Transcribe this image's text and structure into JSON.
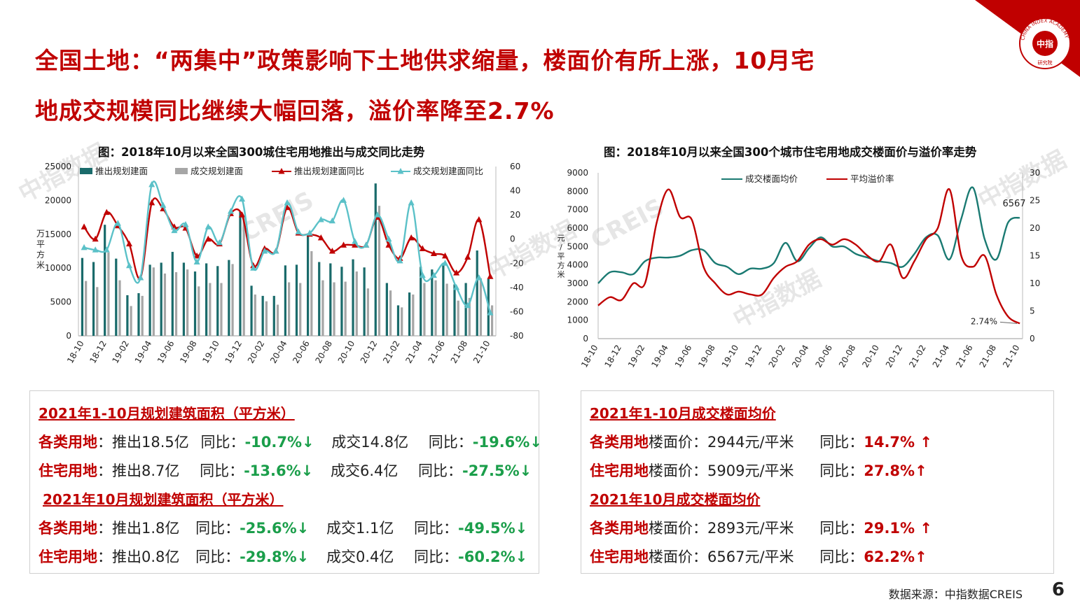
{
  "title": {
    "line1": "全国土地：“两集中”政策影响下土地供求缩量，楼面价有所上涨，10月宅",
    "line2": "地成交规模同比继续大幅回落，溢价率降至2.7%"
  },
  "logo": {
    "text_top": "CHINA INDEX ACADEMY",
    "text_center": "中指",
    "text_bottom": "研究院",
    "color": "#c00000"
  },
  "watermark": {
    "text1": "中指数据",
    "text2": "CREIS"
  },
  "left_chart": {
    "title": "图：2018年10月以来全国300城住宅用地推出与成交同比走势"
  },
  "right_chart": {
    "title": "图：2018年10月以来全国300个城市住宅用地成交楼面价与溢价率走势"
  },
  "chart_data": [
    {
      "type": "bar",
      "title": "图：2018年10月以来全国300城住宅用地推出与成交同比走势",
      "ylabel": "万平方米",
      "ylim": [
        0,
        25000
      ],
      "y2lim": [
        -80,
        60
      ],
      "yticks": [
        "25000",
        "20000",
        "15000",
        "10000",
        "5000",
        "0"
      ],
      "y2ticks": [
        "60",
        "40",
        "20",
        "0",
        "-20",
        "-40",
        "-60",
        "-80"
      ],
      "x_tick_labels": [
        "18-10",
        "18-12",
        "19-02",
        "19-04",
        "19-06",
        "19-08",
        "19-10",
        "19-12",
        "20-02",
        "20-04",
        "20-06",
        "20-08",
        "20-10",
        "20-12",
        "21-02",
        "21-04",
        "21-06",
        "21-08",
        "21-10"
      ],
      "categories": [
        "18-10",
        "18-11",
        "18-12",
        "19-01",
        "19-02",
        "19-03",
        "19-04",
        "19-05",
        "19-06",
        "19-07",
        "19-08",
        "19-09",
        "19-10",
        "19-11",
        "19-12",
        "20-01",
        "20-02",
        "20-03",
        "20-04",
        "20-05",
        "20-06",
        "20-07",
        "20-08",
        "20-09",
        "20-10",
        "20-11",
        "20-12",
        "21-01",
        "21-02",
        "21-03",
        "21-04",
        "21-05",
        "21-06",
        "21-07",
        "21-08",
        "21-09",
        "21-10"
      ],
      "series": [
        {
          "name": "推出规划建面",
          "kind": "bar",
          "axis": "left",
          "color": "#1a6b6b",
          "values": [
            11500,
            10900,
            16400,
            11400,
            6000,
            6300,
            10500,
            10800,
            12400,
            10800,
            9500,
            10700,
            10300,
            11200,
            18300,
            7400,
            5900,
            5900,
            10400,
            10500,
            15000,
            10900,
            10700,
            10200,
            11300,
            10100,
            22500,
            7800,
            4500,
            6400,
            10200,
            9800,
            10500,
            7600,
            7800,
            12600,
            8400
          ]
        },
        {
          "name": "成交规划建面",
          "kind": "bar",
          "axis": "left",
          "color": "#a6a6a6",
          "values": [
            8100,
            7200,
            12300,
            8200,
            4400,
            5900,
            10100,
            9200,
            9400,
            9800,
            7300,
            7800,
            7800,
            10600,
            17600,
            6100,
            5100,
            4600,
            7900,
            7800,
            12500,
            8200,
            7900,
            8000,
            9500,
            7000,
            19200,
            6700,
            4200,
            6100,
            7800,
            8200,
            7700,
            5200,
            5600,
            8500,
            4500
          ]
        },
        {
          "name": "推出规划建面同比",
          "kind": "line",
          "axis": "right",
          "color": "#c00000",
          "values": [
            10,
            0,
            22,
            11,
            -4,
            -32,
            30,
            25,
            10,
            9,
            -14,
            0,
            -4,
            21,
            20,
            -22,
            -8,
            -10,
            26,
            5,
            4,
            1,
            -10,
            -5,
            -5,
            -5,
            18,
            -5,
            -16,
            1,
            -8,
            -12,
            -14,
            -28,
            -15,
            16,
            -31
          ]
        },
        {
          "name": "成交规划建面同比",
          "kind": "line",
          "axis": "right",
          "color": "#5bc1c8",
          "values": [
            -7,
            -9,
            -9,
            13,
            -22,
            -32,
            45,
            28,
            7,
            12,
            -19,
            10,
            -3,
            23,
            33,
            -24,
            -10,
            -10,
            30,
            6,
            5,
            16,
            15,
            32,
            -2,
            -5,
            20,
            0,
            -18,
            30,
            -30,
            -30,
            -20,
            -40,
            -55,
            -32,
            -61
          ]
        }
      ],
      "legend": "top"
    },
    {
      "type": "line",
      "title": "图：2018年10月以来全国300个城市住宅用地成交楼面价与溢价率走势",
      "ylabel": "元/平方米",
      "ylim": [
        0,
        9000
      ],
      "y2lim": [
        0,
        30
      ],
      "yticks": [
        "9000",
        "8000",
        "7000",
        "6000",
        "5000",
        "4000",
        "3000",
        "2000",
        "1000",
        "0"
      ],
      "y2ticks": [
        "30",
        "25",
        "20",
        "15",
        "10",
        "5",
        "0"
      ],
      "x_tick_labels": [
        "18-10",
        "18-12",
        "19-02",
        "19-04",
        "19-06",
        "19-08",
        "19-10",
        "19-12",
        "20-02",
        "20-04",
        "20-06",
        "20-08",
        "20-10",
        "20-12",
        "21-02",
        "21-04",
        "21-06",
        "21-08",
        "21-10"
      ],
      "categories": [
        "18-10",
        "18-11",
        "18-12",
        "19-01",
        "19-02",
        "19-03",
        "19-04",
        "19-05",
        "19-06",
        "19-07",
        "19-08",
        "19-09",
        "19-10",
        "19-11",
        "19-12",
        "20-01",
        "20-02",
        "20-03",
        "20-04",
        "20-05",
        "20-06",
        "20-07",
        "20-08",
        "20-09",
        "20-10",
        "20-11",
        "20-12",
        "21-01",
        "21-02",
        "21-03",
        "21-04",
        "21-05",
        "21-06",
        "21-07",
        "21-08",
        "21-09",
        "21-10"
      ],
      "series": [
        {
          "name": "成交楼面均价",
          "axis": "left",
          "color": "#1a7a72",
          "values": [
            3000,
            3600,
            3600,
            3500,
            4200,
            4400,
            4400,
            4500,
            4800,
            4800,
            4100,
            3900,
            3500,
            3800,
            3800,
            4100,
            5200,
            4200,
            4900,
            5500,
            5000,
            5000,
            4600,
            4400,
            4200,
            4100,
            3900,
            4600,
            5500,
            5600,
            4300,
            6500,
            8200,
            5400,
            4300,
            6300,
            6567
          ]
        },
        {
          "name": "平均溢价率",
          "axis": "left2",
          "color": "#c00000",
          "values": [
            6,
            7.5,
            7,
            10,
            10,
            21,
            27,
            22,
            21.5,
            13,
            10,
            8,
            8.5,
            8,
            8,
            11,
            13,
            14,
            17,
            18,
            17,
            18,
            17,
            15,
            14,
            17,
            11,
            14,
            18,
            20,
            27,
            15,
            13,
            15,
            8,
            4,
            2.74
          ]
        }
      ],
      "annotations": [
        "6567",
        "2.74%"
      ],
      "legend": "top"
    }
  ],
  "summary_left": {
    "h1": "2021年1-10月规划建筑面积（平方米）",
    "r1": {
      "cat": "各类用地",
      "push": "：推出18.5亿",
      "yoy_label": "同比：",
      "yoy": "-10.7%↓",
      "deal": "成交14.8亿",
      "yoy2_label": "同比：",
      "yoy2": "-19.6%↓"
    },
    "r2": {
      "cat": "住宅用地",
      "push": "：推出8.7亿",
      "yoy_label": "同比：",
      "yoy": "-13.6%↓",
      "deal": "成交6.4亿",
      "yoy2_label": "同比：",
      "yoy2": "-27.5%↓"
    },
    "h2": "2021年10月规划建筑面积（平方米）",
    "r3": {
      "cat": "各类用地",
      "push": "：推出1.8亿",
      "yoy_label": "同比：",
      "yoy": "-25.6%↓",
      "deal": "成交1.1亿",
      "yoy2_label": "同比：",
      "yoy2": "-49.5%↓"
    },
    "r4": {
      "cat": "住宅用地",
      "push": "：推出0.8亿",
      "yoy_label": "同比：",
      "yoy": "-29.8%↓",
      "deal": "成交0.4亿",
      "yoy2_label": "同比：",
      "yoy2": "-60.2%↓"
    }
  },
  "summary_right": {
    "h1": "2021年1-10月成交楼面均价",
    "r1": {
      "cat": "各类用地",
      "price": "楼面价：2944元/平米",
      "yoy_label": "同比：",
      "yoy": "14.7% ↑"
    },
    "r2": {
      "cat": "住宅用地",
      "price": "楼面价：5909元/平米",
      "yoy_label": "同比：",
      "yoy": "27.8%↑"
    },
    "h2": "2021年10月成交楼面均价",
    "r3": {
      "cat": "各类用地",
      "price": "楼面价：2893元/平米",
      "yoy_label": "同比：",
      "yoy": "29.1% ↑"
    },
    "r4": {
      "cat": "住宅用地",
      "price": "楼面价：6567元/平米",
      "yoy_label": "同比：",
      "yoy": "62.2%↑"
    }
  },
  "footer": {
    "source": "数据来源：中指数据CREIS",
    "page": "6"
  }
}
